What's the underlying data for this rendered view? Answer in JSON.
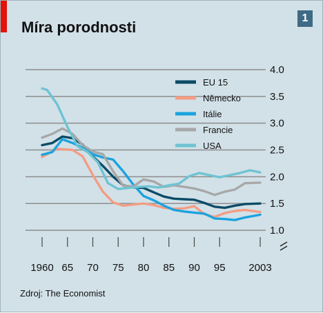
{
  "header": {
    "title": "Míra porodnosti",
    "badge": "1"
  },
  "footer": {
    "source": "Zdroj: The Economist"
  },
  "chart_data": {
    "type": "line",
    "title": "Míra porodnosti",
    "xlabel": "",
    "ylabel": "",
    "xlim": [
      1958,
      2003
    ],
    "ylim": [
      1.0,
      4.0
    ],
    "x_ticks": [
      1960,
      1965,
      1970,
      1975,
      1980,
      1985,
      1990,
      1995,
      2003
    ],
    "x_tick_labels": [
      "1960",
      "65",
      "70",
      "75",
      "80",
      "85",
      "90",
      "95",
      "2003"
    ],
    "y_ticks": [
      1.0,
      1.5,
      2.0,
      2.5,
      3.0,
      3.5,
      4.0
    ],
    "y_tick_labels": [
      "1.0",
      "1.5",
      "2.0",
      "2.5",
      "3.0",
      "3.5",
      "4.0"
    ],
    "axis_break": true,
    "grid": true,
    "legend_position": "top-right",
    "series": [
      {
        "name": "EU 15",
        "color": "#0b4b66",
        "x": [
          1960,
          1962,
          1964,
          1966,
          1968,
          1970,
          1972,
          1974,
          1976,
          1978,
          1980,
          1982,
          1984,
          1986,
          1988,
          1990,
          1992,
          1994,
          1996,
          1998,
          2000,
          2003
        ],
        "y": [
          2.59,
          2.63,
          2.75,
          2.72,
          2.6,
          2.38,
          2.2,
          2.0,
          1.84,
          1.8,
          1.79,
          1.71,
          1.63,
          1.59,
          1.58,
          1.57,
          1.51,
          1.44,
          1.42,
          1.46,
          1.49,
          1.5
        ]
      },
      {
        "name": "Německo",
        "color": "#f39d84",
        "x": [
          1960,
          1963,
          1966,
          1968,
          1970,
          1972,
          1974,
          1976,
          1978,
          1980,
          1982,
          1984,
          1986,
          1988,
          1990,
          1992,
          1994,
          1996,
          1998,
          2000,
          2003
        ],
        "y": [
          2.37,
          2.52,
          2.5,
          2.38,
          2.03,
          1.72,
          1.52,
          1.46,
          1.48,
          1.5,
          1.47,
          1.42,
          1.4,
          1.41,
          1.45,
          1.3,
          1.25,
          1.32,
          1.36,
          1.38,
          1.34
        ]
      },
      {
        "name": "Itálie",
        "color": "#1aa3de",
        "x": [
          1960,
          1962,
          1964,
          1966,
          1968,
          1970,
          1972,
          1974,
          1976,
          1978,
          1980,
          1982,
          1984,
          1986,
          1988,
          1990,
          1992,
          1994,
          1996,
          1998,
          2000,
          2003
        ],
        "y": [
          2.41,
          2.46,
          2.7,
          2.63,
          2.54,
          2.42,
          2.36,
          2.32,
          2.1,
          1.85,
          1.64,
          1.56,
          1.46,
          1.38,
          1.35,
          1.33,
          1.31,
          1.22,
          1.21,
          1.19,
          1.24,
          1.29
        ]
      },
      {
        "name": "Francie",
        "color": "#a8a8a8",
        "x": [
          1960,
          1962,
          1964,
          1966,
          1968,
          1970,
          1972,
          1974,
          1976,
          1978,
          1980,
          1982,
          1984,
          1986,
          1988,
          1990,
          1992,
          1994,
          1996,
          1998,
          2000,
          2003
        ],
        "y": [
          2.73,
          2.8,
          2.9,
          2.8,
          2.59,
          2.47,
          2.42,
          2.1,
          1.83,
          1.82,
          1.95,
          1.91,
          1.81,
          1.84,
          1.81,
          1.78,
          1.73,
          1.66,
          1.72,
          1.76,
          1.88,
          1.89
        ]
      },
      {
        "name": "USA",
        "color": "#6fc3d2",
        "x": [
          1960,
          1961,
          1963,
          1965,
          1967,
          1969,
          1971,
          1973,
          1975,
          1977,
          1979,
          1981,
          1983,
          1985,
          1987,
          1989,
          1991,
          1993,
          1995,
          1997,
          1999,
          2001,
          2003
        ],
        "y": [
          3.65,
          3.62,
          3.35,
          2.93,
          2.57,
          2.46,
          2.27,
          1.88,
          1.77,
          1.79,
          1.81,
          1.82,
          1.8,
          1.84,
          1.87,
          2.01,
          2.07,
          2.03,
          1.99,
          2.03,
          2.07,
          2.12,
          2.08
        ]
      }
    ]
  }
}
